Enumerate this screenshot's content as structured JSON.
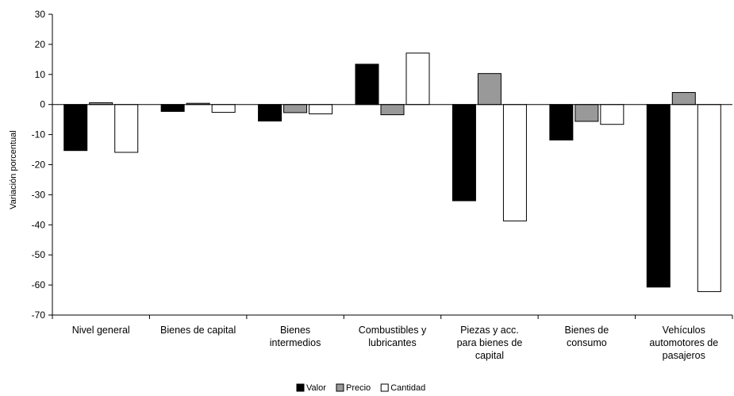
{
  "chart_data": {
    "type": "bar",
    "title": "",
    "xlabel": "",
    "ylabel": "Variación porcentual",
    "ylim": [
      -70,
      30
    ],
    "yticks": [
      30,
      20,
      10,
      0,
      -10,
      -20,
      -30,
      -40,
      -50,
      -60,
      -70
    ],
    "grid": false,
    "legend_position": "bottom",
    "categories": [
      [
        "Nivel general"
      ],
      [
        "Bienes de capital"
      ],
      [
        "Bienes",
        "intermedios"
      ],
      [
        "Combustibles y",
        "lubricantes"
      ],
      [
        "Piezas y acc.",
        "para bienes de",
        "capital"
      ],
      [
        "Bienes de",
        "consumo"
      ],
      [
        "Vehículos",
        "automotores de",
        "pasajeros"
      ]
    ],
    "series": [
      {
        "name": "Valor",
        "color": "#000000",
        "values": [
          -15.3,
          -2.3,
          -5.5,
          13.4,
          -32.0,
          -11.8,
          -60.7
        ]
      },
      {
        "name": "Precio",
        "color": "#999999",
        "values": [
          0.6,
          0.4,
          -2.7,
          -3.4,
          10.3,
          -5.6,
          4.0
        ]
      },
      {
        "name": "Cantidad",
        "color": "#ffffff",
        "values": [
          -15.9,
          -2.6,
          -3.1,
          17.1,
          -38.7,
          -6.6,
          -62.2
        ]
      }
    ]
  }
}
